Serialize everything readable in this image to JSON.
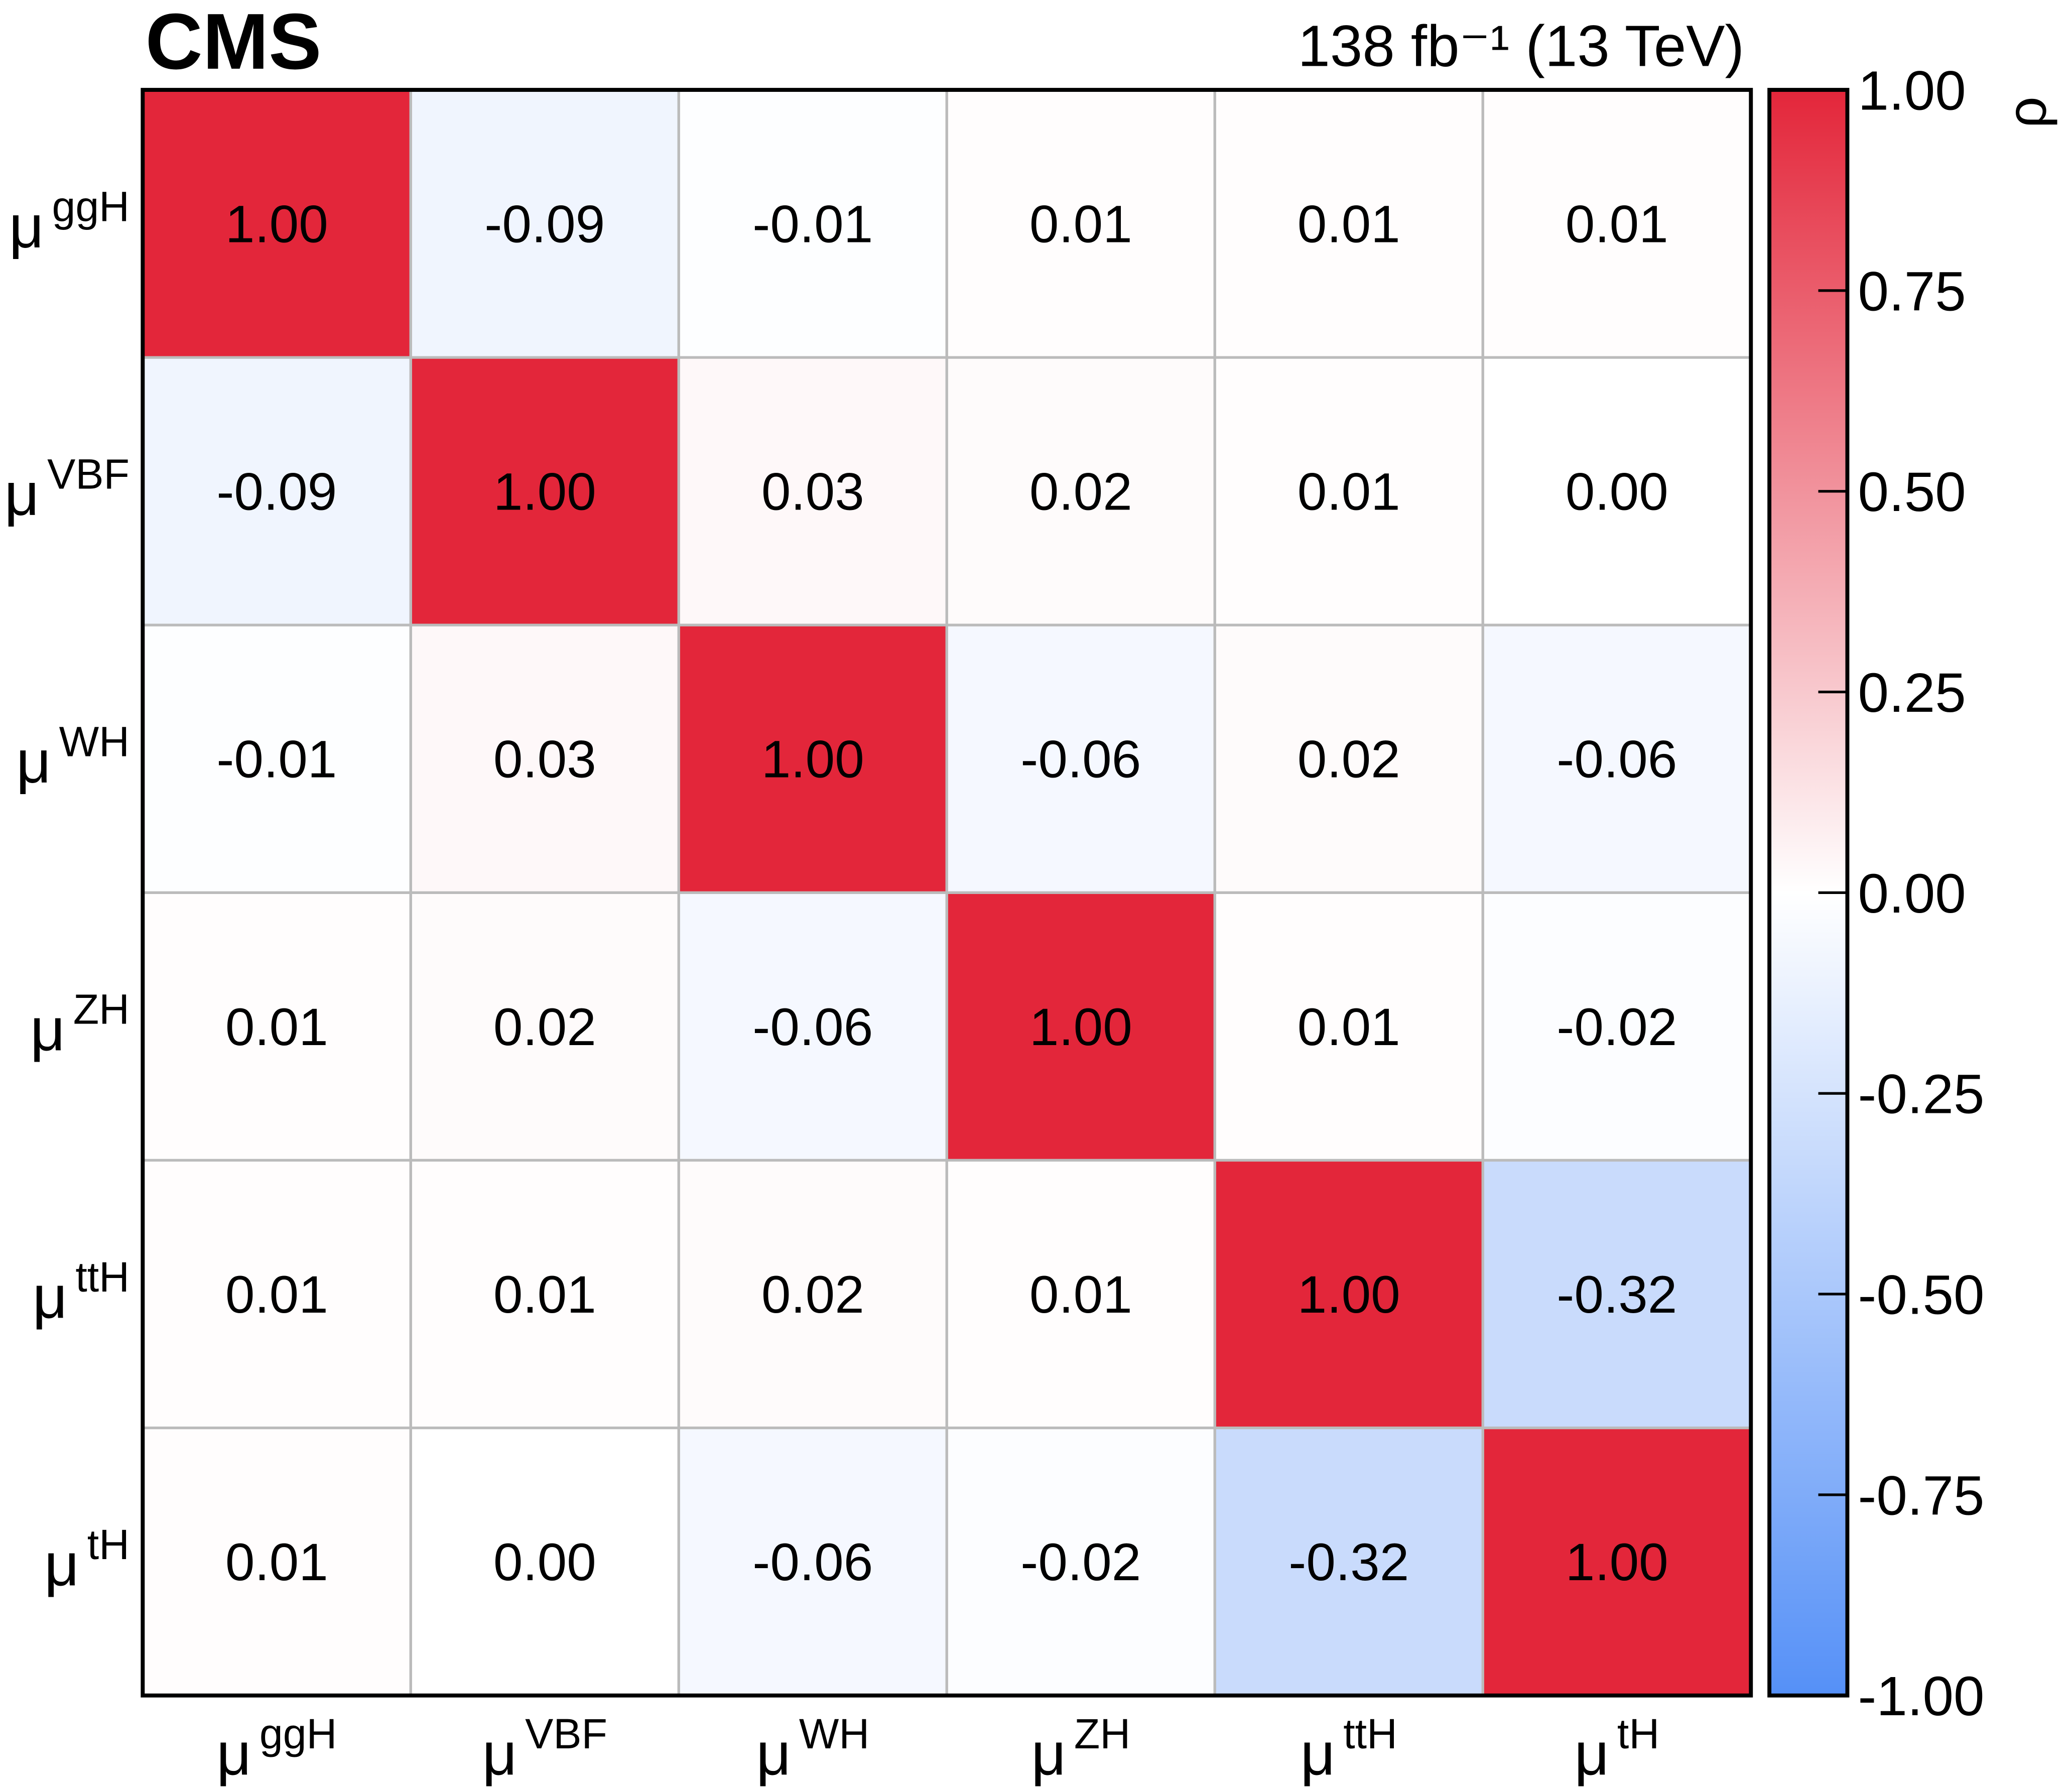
{
  "chart_data": {
    "type": "heatmap",
    "title": "CMS",
    "subtitle": "138 fb⁻¹ (13 TeV)",
    "category_symbol": "μ",
    "categories": [
      "ggH",
      "VBF",
      "WH",
      "ZH",
      "ttH",
      "tH"
    ],
    "values": [
      [
        1,
        -0.09,
        -0.01,
        0.01,
        0.01,
        0.01
      ],
      [
        -0.09,
        1,
        0.03,
        0.02,
        0.01,
        0
      ],
      [
        -0.01,
        0.03,
        1,
        -0.06,
        0.02,
        -0.06
      ],
      [
        0.01,
        0.02,
        -0.06,
        1,
        0.01,
        -0.02
      ],
      [
        0.01,
        0.01,
        0.02,
        0.01,
        1,
        -0.32
      ],
      [
        0.01,
        0,
        -0.06,
        -0.02,
        -0.32,
        1
      ]
    ],
    "value_labels": [
      [
        "1.00",
        "-0.09",
        "-0.01",
        "0.01",
        "0.01",
        "0.01"
      ],
      [
        "-0.09",
        "1.00",
        "0.03",
        "0.02",
        "0.01",
        "0.00"
      ],
      [
        "-0.01",
        "0.03",
        "1.00",
        "-0.06",
        "0.02",
        "-0.06"
      ],
      [
        "0.01",
        "0.02",
        "-0.06",
        "1.00",
        "0.01",
        "-0.02"
      ],
      [
        "0.01",
        "0.01",
        "0.02",
        "0.01",
        "1.00",
        "-0.32"
      ],
      [
        "0.01",
        "0.00",
        "-0.06",
        "-0.02",
        "-0.32",
        "1.00"
      ]
    ],
    "colormap": [
      "#5590f7",
      "#ffffff",
      "#e3263a"
    ],
    "colorbar_label": "ρ",
    "zlim": [
      -1,
      1
    ],
    "zticks": [
      {
        "value": 1,
        "label": "1.00"
      },
      0.75,
      {
        "value": 0.5,
        "label": "0.50"
      },
      0.25,
      {
        "value": 0,
        "label": "0.00"
      },
      -0.25,
      {
        "value": -0.5,
        "label": "-0.50"
      },
      -0.75,
      {
        "value": -1,
        "label": "-1.00"
      }
    ]
  }
}
